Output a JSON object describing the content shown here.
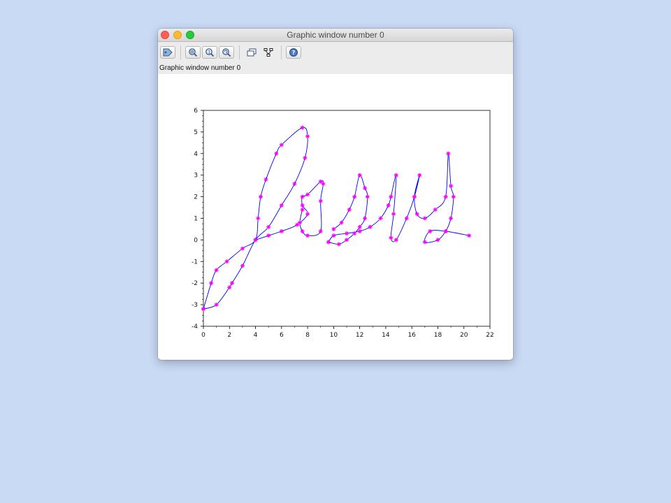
{
  "window": {
    "title": "Graphic window number 0",
    "status_text": "Graphic window number 0",
    "toolbar": [
      {
        "name": "datatip-icon",
        "group": 1
      },
      {
        "name": "zoom-icon",
        "group": 2
      },
      {
        "name": "zoom-reset-icon",
        "group": 2
      },
      {
        "name": "rotate-icon",
        "group": 2
      },
      {
        "name": "new-window-icon",
        "group": 3
      },
      {
        "name": "tree-icon",
        "group": 3
      },
      {
        "name": "help-icon",
        "group": 4
      }
    ]
  },
  "chart_data": {
    "type": "line",
    "xlim": [
      0,
      22
    ],
    "ylim": [
      -4,
      6
    ],
    "xticks": [
      0,
      2,
      4,
      6,
      8,
      10,
      12,
      14,
      16,
      18,
      20,
      22
    ],
    "yticks": [
      -4,
      -3,
      -2,
      -1,
      0,
      1,
      2,
      3,
      4,
      5,
      6
    ],
    "line_color": "#0000ff",
    "marker_color": "#ff00ff",
    "marker": "asterisk",
    "series": [
      {
        "points": [
          [
            0,
            -3.2
          ],
          [
            0.6,
            -2
          ],
          [
            1,
            -1.4
          ],
          [
            1.8,
            -1
          ],
          [
            3,
            -0.4
          ],
          [
            4,
            0
          ],
          [
            4.2,
            1
          ],
          [
            4.4,
            2
          ],
          [
            4.8,
            2.8
          ],
          [
            5.6,
            4
          ],
          [
            6,
            4.4
          ],
          [
            7.6,
            5.2
          ],
          [
            8,
            4.8
          ],
          [
            7.8,
            3.8
          ],
          [
            7,
            2.6
          ],
          [
            6,
            1.6
          ],
          [
            5,
            0.6
          ],
          [
            4,
            0
          ],
          [
            3,
            -1.2
          ],
          [
            2.2,
            -2
          ],
          [
            2,
            -2.2
          ],
          [
            1,
            -3
          ],
          [
            0,
            -3.2
          ]
        ]
      },
      {
        "points": [
          [
            4,
            0
          ],
          [
            5,
            0.2
          ],
          [
            6,
            0.4
          ],
          [
            7.2,
            0.7
          ],
          [
            8,
            1.2
          ],
          [
            7.6,
            1.6
          ],
          [
            7.6,
            2
          ],
          [
            8,
            2.1
          ],
          [
            9,
            2.7
          ],
          [
            9.2,
            2.6
          ],
          [
            9,
            1.8
          ],
          [
            9,
            0.4
          ],
          [
            8,
            0.2
          ],
          [
            7.6,
            0.4
          ],
          [
            7.4,
            0.8
          ],
          [
            7.6,
            1.4
          ]
        ]
      },
      {
        "points": [
          [
            9.6,
            -0.1
          ],
          [
            10,
            0.2
          ],
          [
            11,
            0.3
          ],
          [
            12,
            0.4
          ],
          [
            12.8,
            0.6
          ],
          [
            13.6,
            1
          ],
          [
            14.2,
            1.6
          ],
          [
            14.4,
            2
          ],
          [
            14.8,
            3
          ],
          [
            14.6,
            1.2
          ],
          [
            14.4,
            0.1
          ],
          [
            14.8,
            0
          ],
          [
            15.6,
            1
          ],
          [
            16.2,
            2
          ],
          [
            16.6,
            3
          ],
          [
            16.2,
            2
          ],
          [
            16.4,
            1.2
          ],
          [
            17,
            1
          ],
          [
            17.8,
            1.4
          ],
          [
            18.6,
            2
          ],
          [
            18.8,
            4
          ],
          [
            19,
            2.5
          ],
          [
            19.2,
            2
          ],
          [
            19,
            1
          ],
          [
            18.6,
            0.4
          ],
          [
            18,
            0
          ],
          [
            17,
            -0.1
          ],
          [
            17.4,
            0.4
          ],
          [
            18.6,
            0.4
          ],
          [
            20.4,
            0.2
          ]
        ]
      },
      {
        "points": [
          [
            9.6,
            -0.1
          ],
          [
            10.4,
            -0.2
          ],
          [
            11,
            0
          ],
          [
            11.6,
            0.3
          ],
          [
            12,
            0.6
          ],
          [
            12.4,
            1
          ],
          [
            12.6,
            2
          ],
          [
            12.4,
            2.4
          ],
          [
            12,
            3
          ],
          [
            11.6,
            2
          ],
          [
            11.2,
            1.4
          ],
          [
            10.6,
            0.8
          ],
          [
            10,
            0.5
          ]
        ]
      }
    ]
  }
}
